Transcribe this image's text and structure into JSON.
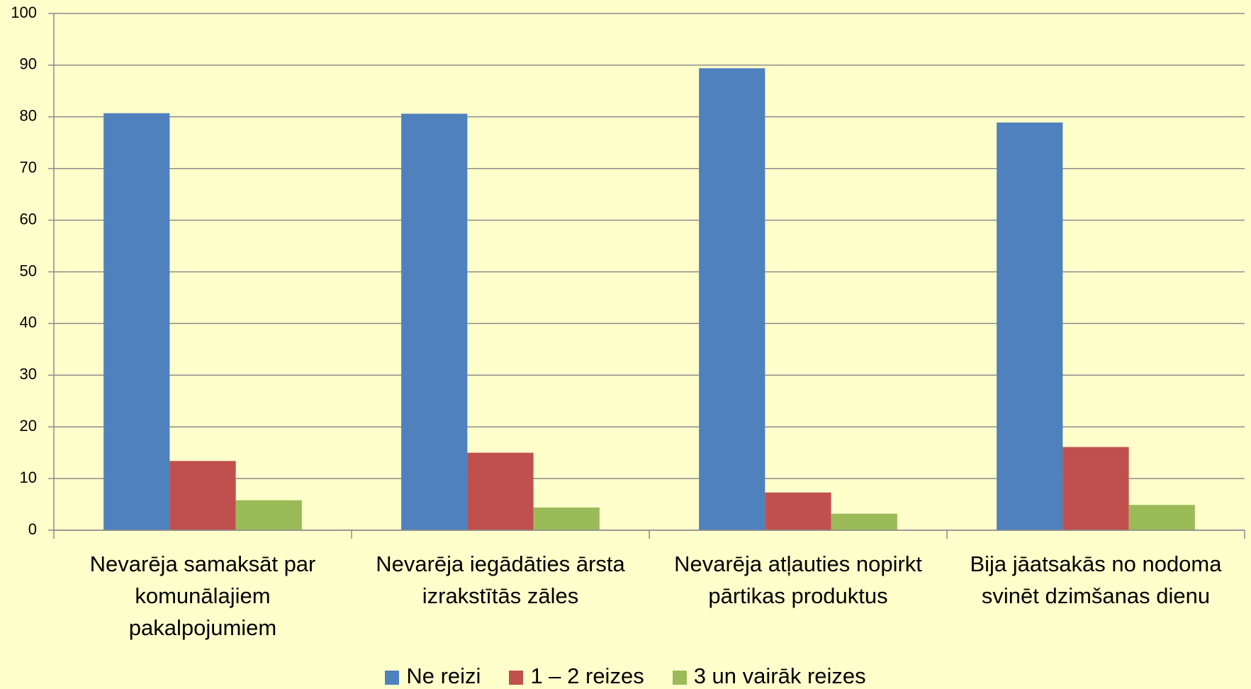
{
  "chart_data": {
    "type": "bar",
    "categories": [
      "Nevarēja samaksāt par komunālajiem pakalpojumiem",
      "Nevarēja iegādāties ārsta izrakstītās zāles",
      "Nevarēja atļauties nopirkt pārtikas produktus",
      "Bija jāatsakās no nodoma svinēt dzimšanas dienu"
    ],
    "series": [
      {
        "name": "Ne reizi",
        "color": "#4f81bd",
        "values": [
          80.7,
          80.6,
          89.4,
          78.9
        ]
      },
      {
        "name": "1 – 2 reizes",
        "color": "#c0504d",
        "values": [
          13.4,
          15,
          7.3,
          16.1
        ]
      },
      {
        "name": "3 un vairāk reizes",
        "color": "#9bbb59",
        "values": [
          5.8,
          4.4,
          3.2,
          4.9
        ]
      }
    ],
    "ylim": [
      0,
      100
    ],
    "yticks": [
      0,
      10,
      20,
      30,
      40,
      50,
      60,
      70,
      80,
      90,
      100
    ],
    "grid": true,
    "legend": "bottom"
  }
}
